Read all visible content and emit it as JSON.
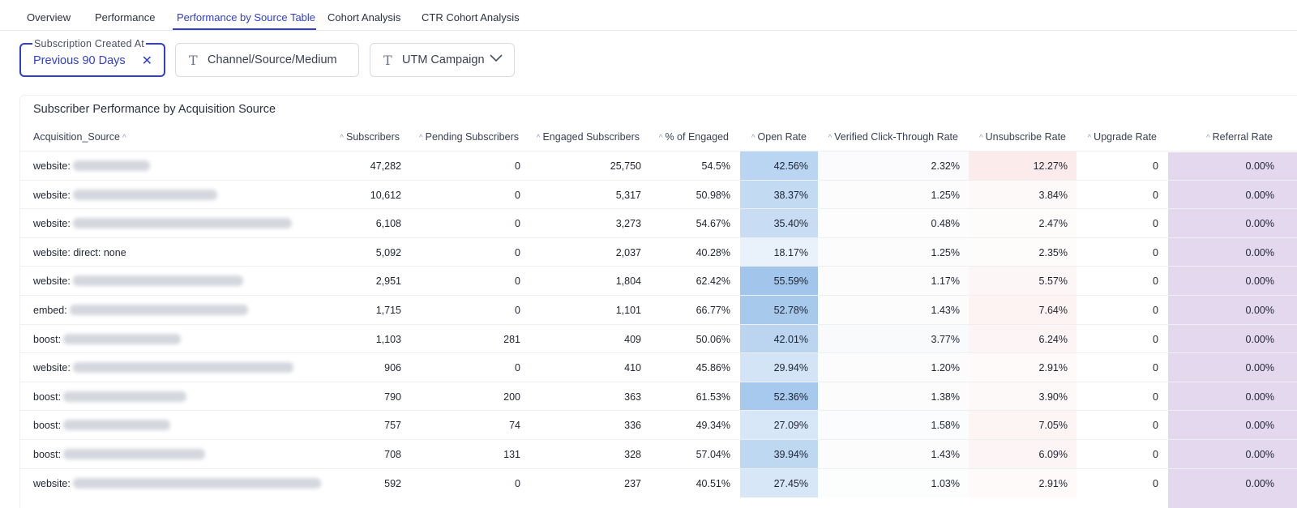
{
  "tabs": [
    {
      "label": "Overview",
      "active": false
    },
    {
      "label": "Performance",
      "active": false
    },
    {
      "label": "Performance by Source Table",
      "active": true
    },
    {
      "label": "Cohort Analysis",
      "active": false
    },
    {
      "label": "CTR Cohort Analysis",
      "active": false
    }
  ],
  "filters": {
    "created_at": {
      "label": "Subscription Created At",
      "value": "Previous 90 Days"
    },
    "channel": {
      "value": "Channel/Source/Medium"
    },
    "utm": {
      "value": "UTM Campaign"
    }
  },
  "table": {
    "title": "Subscriber Performance by Acquisition Source",
    "columns": [
      "Acquisition_Source",
      "Subscribers",
      "Pending Subscribers",
      "Engaged Subscribers",
      "% of Engaged",
      "Open Rate",
      "Verified Click-Through Rate",
      "Unsubscribe Rate",
      "Upgrade Rate",
      "Referral Rate"
    ],
    "rows": [
      {
        "source": "website:",
        "subscribers": "47,282",
        "pending": "0",
        "engaged": "25,750",
        "pct_engaged": "54.5%",
        "open_rate": "42.56%",
        "ctr": "2.32%",
        "unsub": "12.27%",
        "upgrade": "0",
        "referral": "0.00%"
      },
      {
        "source": "website:",
        "subscribers": "10,612",
        "pending": "0",
        "engaged": "5,317",
        "pct_engaged": "50.98%",
        "open_rate": "38.37%",
        "ctr": "1.25%",
        "unsub": "3.84%",
        "upgrade": "0",
        "referral": "0.00%"
      },
      {
        "source": "website:",
        "subscribers": "6,108",
        "pending": "0",
        "engaged": "3,273",
        "pct_engaged": "54.67%",
        "open_rate": "35.40%",
        "ctr": "0.48%",
        "unsub": "2.47%",
        "upgrade": "0",
        "referral": "0.00%"
      },
      {
        "source": "website: direct: none",
        "subscribers": "5,092",
        "pending": "0",
        "engaged": "2,037",
        "pct_engaged": "40.28%",
        "open_rate": "18.17%",
        "ctr": "1.25%",
        "unsub": "2.35%",
        "upgrade": "0",
        "referral": "0.00%"
      },
      {
        "source": "website:",
        "subscribers": "2,951",
        "pending": "0",
        "engaged": "1,804",
        "pct_engaged": "62.42%",
        "open_rate": "55.59%",
        "ctr": "1.17%",
        "unsub": "5.57%",
        "upgrade": "0",
        "referral": "0.00%"
      },
      {
        "source": "embed:",
        "subscribers": "1,715",
        "pending": "0",
        "engaged": "1,101",
        "pct_engaged": "66.77%",
        "open_rate": "52.78%",
        "ctr": "1.43%",
        "unsub": "7.64%",
        "upgrade": "0",
        "referral": "0.00%"
      },
      {
        "source": "boost:",
        "subscribers": "1,103",
        "pending": "281",
        "engaged": "409",
        "pct_engaged": "50.06%",
        "open_rate": "42.01%",
        "ctr": "3.77%",
        "unsub": "6.24%",
        "upgrade": "0",
        "referral": "0.00%"
      },
      {
        "source": "website:",
        "subscribers": "906",
        "pending": "0",
        "engaged": "410",
        "pct_engaged": "45.86%",
        "open_rate": "29.94%",
        "ctr": "1.20%",
        "unsub": "2.91%",
        "upgrade": "0",
        "referral": "0.00%"
      },
      {
        "source": "boost:",
        "subscribers": "790",
        "pending": "200",
        "engaged": "363",
        "pct_engaged": "61.53%",
        "open_rate": "52.36%",
        "ctr": "1.38%",
        "unsub": "3.90%",
        "upgrade": "0",
        "referral": "0.00%"
      },
      {
        "source": "boost:",
        "subscribers": "757",
        "pending": "74",
        "engaged": "336",
        "pct_engaged": "49.34%",
        "open_rate": "27.09%",
        "ctr": "1.58%",
        "unsub": "7.05%",
        "upgrade": "0",
        "referral": "0.00%"
      },
      {
        "source": "boost:",
        "subscribers": "708",
        "pending": "131",
        "engaged": "328",
        "pct_engaged": "57.04%",
        "open_rate": "39.94%",
        "ctr": "1.43%",
        "unsub": "6.09%",
        "upgrade": "0",
        "referral": "0.00%"
      },
      {
        "source": "website:",
        "subscribers": "592",
        "pending": "0",
        "engaged": "237",
        "pct_engaged": "40.51%",
        "open_rate": "27.45%",
        "ctr": "1.03%",
        "unsub": "2.91%",
        "upgrade": "0",
        "referral": "0.00%"
      }
    ]
  },
  "colors": {
    "accent": "#2f3fd0",
    "open_rate_heat": "#4a90d9",
    "unsubscribe_heat": "#e88a8a",
    "referral_bg": "#e4d8ee"
  }
}
